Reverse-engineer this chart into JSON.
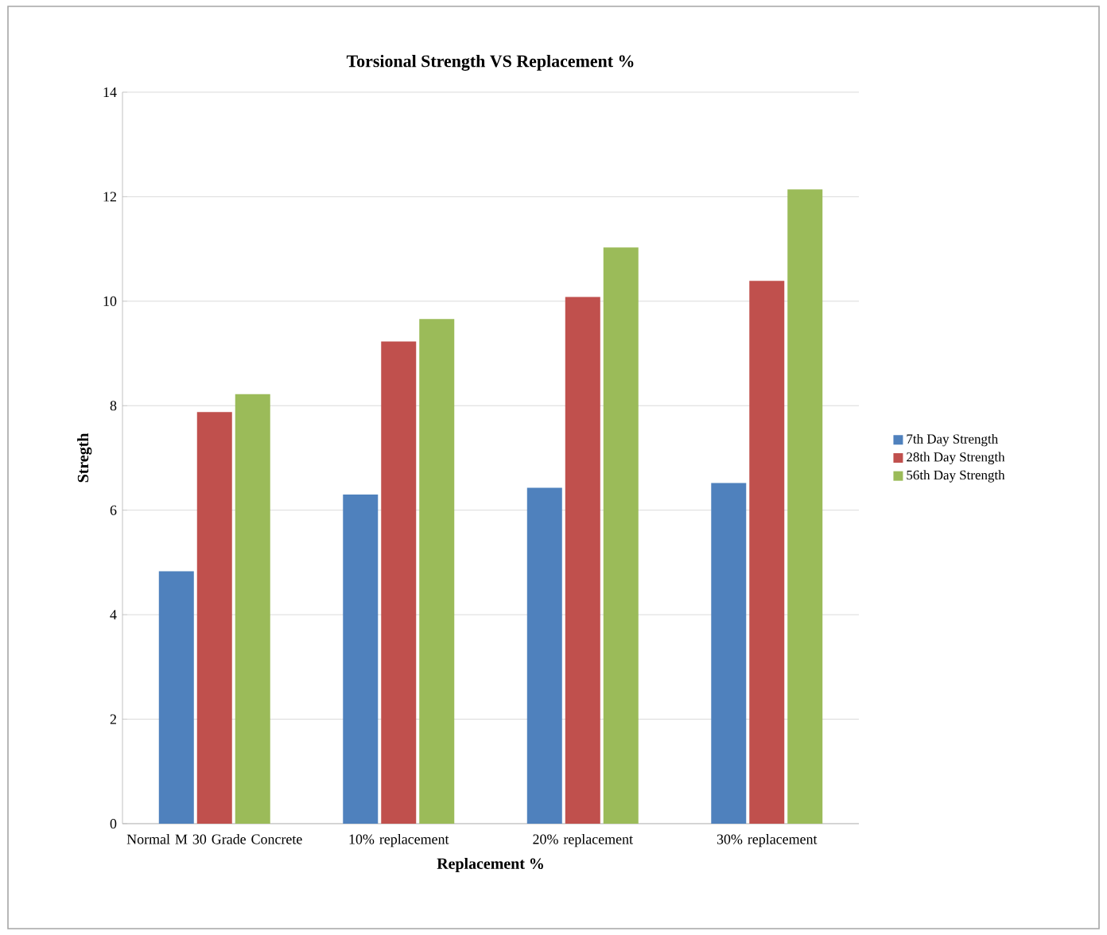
{
  "chart_data": {
    "type": "bar",
    "title": "Torsional  Strength VS Replacement %",
    "xlabel": "Replacement %",
    "ylabel": "Stregth",
    "categories": [
      "Normal M 30 Grade Concrete",
      "10% replacement",
      "20% replacement",
      "30% replacement"
    ],
    "series": [
      {
        "name": "7th Day Strength",
        "color": "#4f81bd",
        "values": [
          4.83,
          6.3,
          6.43,
          6.52
        ]
      },
      {
        "name": "28th Day Strength",
        "color": "#c0504d",
        "values": [
          7.88,
          9.23,
          10.08,
          10.39
        ]
      },
      {
        "name": "56th Day Strength",
        "color": "#9bbb59",
        "values": [
          8.22,
          9.66,
          11.03,
          12.14
        ]
      }
    ],
    "ylim": [
      0,
      14
    ],
    "yticks": [
      0,
      2,
      4,
      6,
      8,
      10,
      12,
      14
    ],
    "grid": "y",
    "legend": "right"
  }
}
